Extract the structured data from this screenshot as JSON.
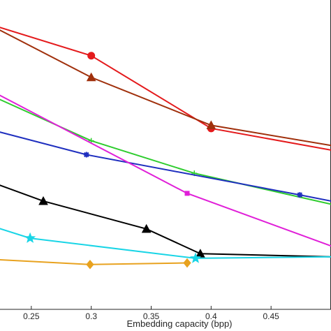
{
  "chart_data": {
    "type": "line",
    "title": "",
    "xlabel": "Embedding capacity (bpp)",
    "ylabel": "",
    "xlim": [
      0.2,
      0.5
    ],
    "xticks": [
      0.25,
      0.3,
      0.35,
      0.4,
      0.45
    ],
    "xtick_labels": [
      "0.25",
      "0.3",
      "0.35",
      "0.4",
      "0.45"
    ],
    "grid": false,
    "series": [
      {
        "color": "#e41a1c",
        "marker": "circle",
        "points": [
          [
            0.2,
            0.94
          ],
          [
            0.3,
            0.82
          ],
          [
            0.4,
            0.585
          ],
          [
            0.5,
            0.515
          ]
        ]
      },
      {
        "color": "#a0300c",
        "marker": "triangle",
        "points": [
          [
            0.2,
            0.95
          ],
          [
            0.3,
            0.75
          ],
          [
            0.4,
            0.595
          ],
          [
            0.5,
            0.53
          ]
        ]
      },
      {
        "color": "#2ecc2e",
        "marker": "plus",
        "points": [
          [
            0.2,
            0.72
          ],
          [
            0.3,
            0.545
          ],
          [
            0.386,
            0.44
          ],
          [
            0.5,
            0.34
          ]
        ]
      },
      {
        "color": "#1f2fbf",
        "marker": "asterisk",
        "points": [
          [
            0.2,
            0.615
          ],
          [
            0.207,
            0.59
          ],
          [
            0.296,
            0.5
          ],
          [
            0.474,
            0.37
          ],
          [
            0.5,
            0.35
          ]
        ]
      },
      {
        "color": "#e01fd8",
        "marker": "square",
        "points": [
          [
            0.2,
            0.74
          ],
          [
            0.38,
            0.375
          ],
          [
            0.5,
            0.205
          ]
        ]
      },
      {
        "color": "#000000",
        "marker": "triangle",
        "points": [
          [
            0.2,
            0.435
          ],
          [
            0.26,
            0.35
          ],
          [
            0.346,
            0.26
          ],
          [
            0.391,
            0.18
          ],
          [
            0.5,
            0.17
          ]
        ]
      },
      {
        "color": "#19d5e6",
        "marker": "star",
        "points": [
          [
            0.2,
            0.29
          ],
          [
            0.249,
            0.23
          ],
          [
            0.387,
            0.165
          ],
          [
            0.5,
            0.17
          ]
        ]
      },
      {
        "color": "#e8a21f",
        "marker": "diamond",
        "points": [
          [
            0.2,
            0.165
          ],
          [
            0.299,
            0.145
          ],
          [
            0.38,
            0.15
          ]
        ]
      }
    ]
  }
}
